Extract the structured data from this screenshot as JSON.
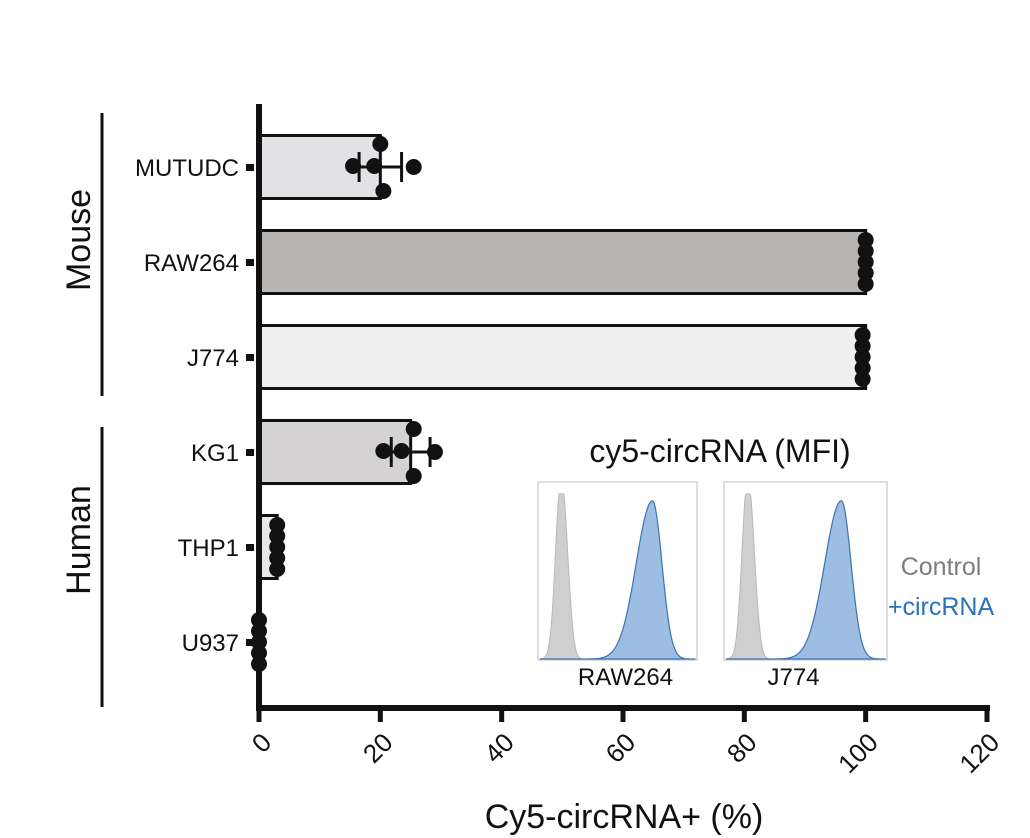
{
  "chart_data": {
    "type": "bar",
    "orientation": "horizontal",
    "xlabel": "Cy5-circRNA+ (%)",
    "xlim": [
      0,
      120
    ],
    "xticks": [
      0,
      20,
      40,
      60,
      80,
      100,
      120
    ],
    "grid": false,
    "groups": [
      {
        "label": "Mouse",
        "categories": [
          "MUTUDC",
          "RAW264",
          "J774"
        ]
      },
      {
        "label": "Human",
        "categories": [
          "KG1",
          "THP1",
          "U937"
        ]
      }
    ],
    "categories": [
      "MUTUDC",
      "RAW264",
      "J774",
      "KG1",
      "THP1",
      "U937"
    ],
    "values": [
      20,
      100,
      100,
      25,
      3,
      0
    ],
    "error": [
      3.5,
      0,
      0,
      3.2,
      0,
      0
    ],
    "bar_colors": [
      "#e2e2e6",
      "#b9b5b3",
      "#efefef",
      "#d4d2d2",
      "#e8e8e8",
      "#e8e8e8"
    ],
    "points": [
      [
        20,
        15.5,
        19,
        25.5,
        20.5
      ],
      [
        100,
        100,
        100,
        100,
        100
      ],
      [
        99.5,
        99.5,
        99.5,
        99.5,
        99.5
      ],
      [
        25.5,
        20.5,
        23.5,
        29,
        25.5
      ],
      [
        3,
        3,
        3,
        3,
        3
      ],
      [
        0,
        0,
        0,
        0,
        0
      ]
    ],
    "inset": {
      "title": "cy5-circRNA (MFI)",
      "panels": [
        "RAW264",
        "J774"
      ],
      "legend": [
        {
          "label": "Control",
          "color": "#7d7d7d"
        },
        {
          "label": "+circRNA",
          "color": "#2a73b8"
        }
      ],
      "fill_colors": {
        "control": "#cfcfcf",
        "treated": "#9ebde3",
        "treated_stroke": "#3d73b0"
      }
    }
  }
}
